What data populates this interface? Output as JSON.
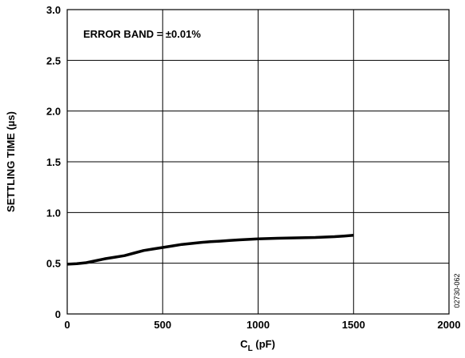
{
  "chart_data": {
    "type": "line",
    "title": "",
    "xlabel": "C",
    "xlabel_sub": "L",
    "xlabel_unit": " (pF)",
    "ylabel": "SETTLING TIME (µs)",
    "xlim": [
      0,
      2000
    ],
    "ylim": [
      0,
      3.0
    ],
    "xticks": [
      "0",
      "500",
      "1000",
      "1500",
      "2000"
    ],
    "yticks": [
      "0",
      "0.5",
      "1.0",
      "1.5",
      "2.0",
      "2.5",
      "3.0"
    ],
    "grid": true,
    "annotation": "ERROR BAND = ±0.01%",
    "figure_id": "02730-062",
    "series": [
      {
        "color": "#000000",
        "x": [
          0,
          50,
          100,
          150,
          200,
          250,
          300,
          350,
          400,
          450,
          500,
          550,
          600,
          650,
          700,
          750,
          800,
          850,
          900,
          950,
          1000,
          1050,
          1100,
          1150,
          1200,
          1250,
          1300,
          1350,
          1400,
          1450,
          1500
        ],
        "y": [
          0.49,
          0.495,
          0.505,
          0.525,
          0.545,
          0.56,
          0.575,
          0.6,
          0.625,
          0.64,
          0.655,
          0.67,
          0.685,
          0.695,
          0.705,
          0.712,
          0.718,
          0.724,
          0.73,
          0.735,
          0.74,
          0.743,
          0.746,
          0.748,
          0.75,
          0.752,
          0.754,
          0.758,
          0.762,
          0.768,
          0.775
        ]
      }
    ]
  }
}
